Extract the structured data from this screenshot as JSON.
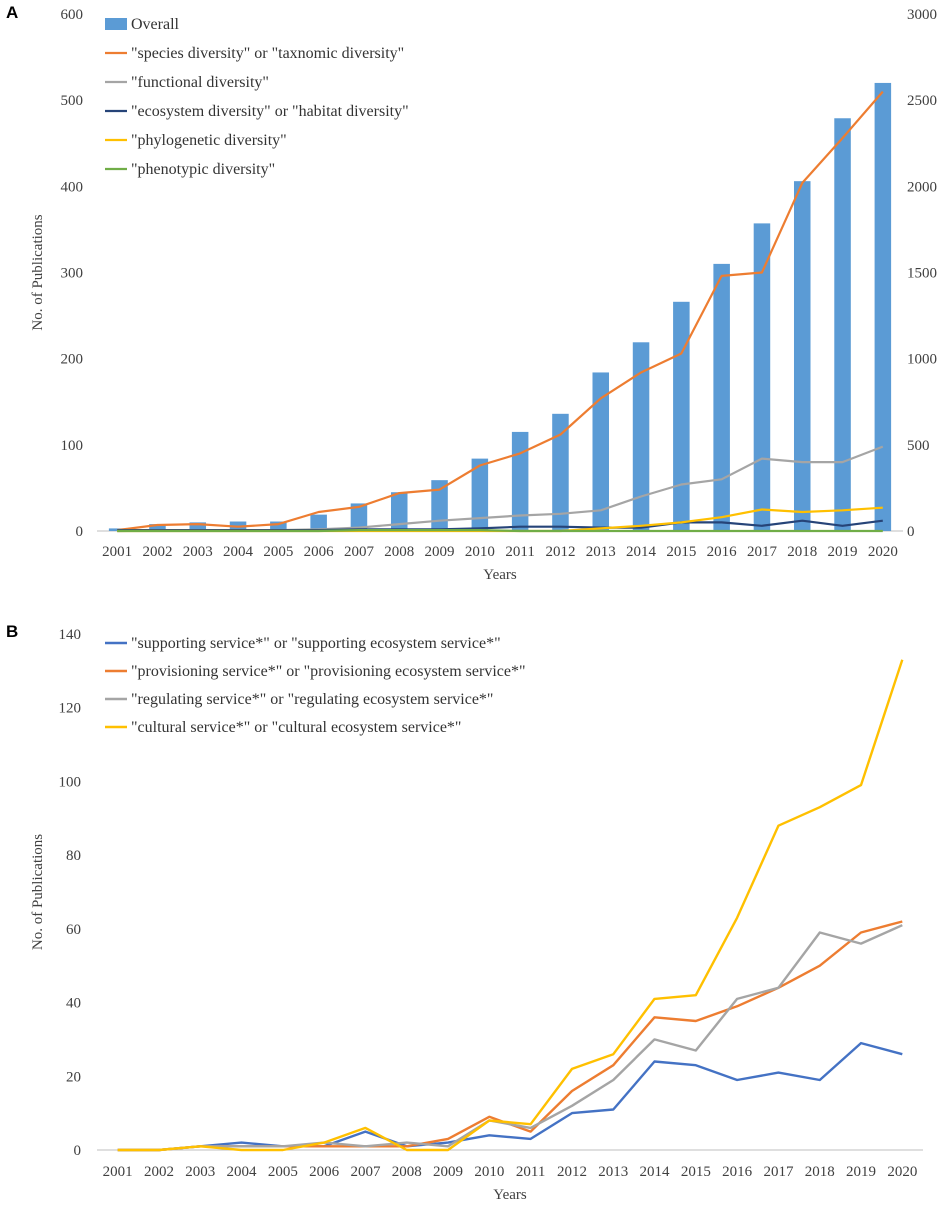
{
  "panels": {
    "a": {
      "label": "A"
    },
    "b": {
      "label": "B"
    }
  },
  "chart_data": [
    {
      "type": "bar",
      "title": "",
      "xlabel": "Years",
      "ylabel": "No. of Publications",
      "categories": [
        "2001",
        "2002",
        "2003",
        "2004",
        "2005",
        "2006",
        "2007",
        "2008",
        "2009",
        "2010",
        "2011",
        "2012",
        "2013",
        "2014",
        "2015",
        "2016",
        "2017",
        "2018",
        "2019",
        "2020"
      ],
      "ylim": [
        0,
        600
      ],
      "y_ticks": [
        "0",
        "100",
        "200",
        "300",
        "400",
        "500",
        "600"
      ],
      "y2lim": [
        0,
        3000
      ],
      "y2_ticks": [
        "0",
        "500",
        "1000",
        "1500",
        "2000",
        "2500",
        "3000"
      ],
      "legend_position": "top-left",
      "grid": false,
      "series": [
        {
          "name": "Overall",
          "kind": "bar",
          "axis": "left",
          "color": "#5B9BD5",
          "values": [
            3,
            8,
            10,
            11,
            11,
            19,
            32,
            45,
            59,
            84,
            115,
            136,
            184,
            219,
            266,
            310,
            357,
            406,
            479,
            520
          ]
        },
        {
          "name": "\"species diversity\" or \"taxnomic diversity\"",
          "kind": "line",
          "axis": "right",
          "color": "#ED7D31",
          "values": [
            5,
            35,
            40,
            25,
            40,
            110,
            140,
            220,
            240,
            380,
            450,
            560,
            770,
            920,
            1030,
            1480,
            1500,
            2020,
            2280,
            2550
          ]
        },
        {
          "name": "\"functional diversity\"",
          "kind": "line",
          "axis": "right",
          "color": "#A5A5A5",
          "values": [
            0,
            2,
            3,
            4,
            5,
            10,
            20,
            40,
            60,
            75,
            90,
            100,
            120,
            200,
            270,
            300,
            420,
            400,
            400,
            490
          ]
        },
        {
          "name": "\"ecosystem diversity\" or \"habitat diversity\"",
          "kind": "line",
          "axis": "right",
          "color": "#264478",
          "values": [
            5,
            5,
            5,
            5,
            5,
            5,
            10,
            10,
            10,
            15,
            25,
            25,
            20,
            20,
            50,
            50,
            30,
            60,
            30,
            60
          ]
        },
        {
          "name": "\"phylogenetic diversity\"",
          "kind": "line",
          "axis": "right",
          "color": "#FFC000",
          "values": [
            0,
            0,
            0,
            0,
            0,
            0,
            0,
            0,
            0,
            0,
            0,
            0,
            15,
            30,
            50,
            80,
            125,
            110,
            120,
            135
          ]
        },
        {
          "name": "\"phenotypic diversity\"",
          "kind": "line",
          "axis": "right",
          "color": "#70AD47",
          "values": [
            0,
            0,
            0,
            0,
            0,
            0,
            5,
            5,
            5,
            5,
            0,
            0,
            0,
            0,
            0,
            0,
            0,
            0,
            0,
            0
          ]
        }
      ]
    },
    {
      "type": "line",
      "title": "",
      "xlabel": "Years",
      "ylabel": "No. of Publications",
      "categories": [
        "2001",
        "2002",
        "2003",
        "2004",
        "2005",
        "2006",
        "2007",
        "2008",
        "2009",
        "2010",
        "2011",
        "2012",
        "2013",
        "2014",
        "2015",
        "2016",
        "2017",
        "2018",
        "2019",
        "2020"
      ],
      "ylim": [
        0,
        140
      ],
      "y_ticks": [
        "0",
        "20",
        "40",
        "60",
        "80",
        "100",
        "120",
        "140"
      ],
      "legend_position": "top-left",
      "grid": false,
      "series": [
        {
          "name": "\"supporting service*\" or \"supporting ecosystem service*\"",
          "color": "#4472C4",
          "values": [
            0,
            0,
            1,
            2,
            1,
            1,
            5,
            1,
            2,
            4,
            3,
            10,
            11,
            24,
            23,
            19,
            21,
            19,
            29,
            26
          ]
        },
        {
          "name": "\"provisioning service*\" or \"provisioning ecosystem service*\"",
          "color": "#ED7D31",
          "values": [
            0,
            0,
            1,
            1,
            1,
            1,
            1,
            1,
            3,
            9,
            5,
            16,
            23,
            36,
            35,
            39,
            44,
            50,
            59,
            62
          ]
        },
        {
          "name": "\"regulating service*\" or \"regulating ecosystem service*\"",
          "color": "#A5A5A5",
          "values": [
            0,
            0,
            1,
            1,
            1,
            2,
            1,
            2,
            1,
            8,
            6,
            12,
            19,
            30,
            27,
            41,
            44,
            59,
            56,
            61
          ]
        },
        {
          "name": "\"cultural service*\" or \"cultural ecosystem service*\"",
          "color": "#FFC000",
          "values": [
            0,
            0,
            1,
            0,
            0,
            2,
            6,
            0,
            0,
            8,
            7,
            22,
            26,
            41,
            42,
            63,
            88,
            93,
            99,
            133
          ]
        }
      ]
    }
  ]
}
